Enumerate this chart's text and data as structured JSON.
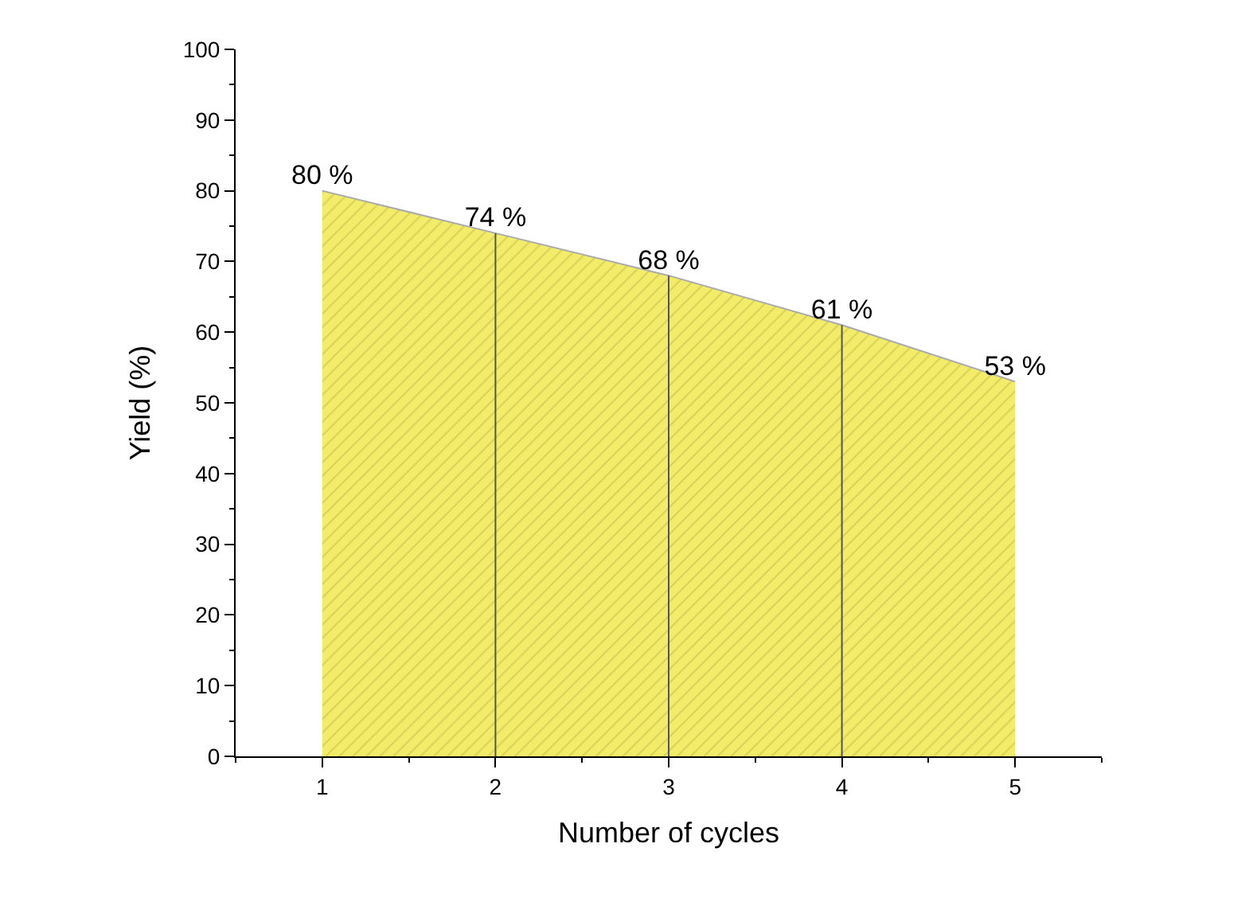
{
  "chart_data": {
    "type": "area",
    "xlabel": "Number of cycles",
    "ylabel": "Yield (%)",
    "x": [
      1,
      2,
      3,
      4,
      5
    ],
    "series": [
      {
        "color": "#f2ec6a",
        "values": [
          80,
          74,
          68,
          61,
          53
        ]
      }
    ],
    "value_labels": [
      "80 %",
      "74 %",
      "68 %",
      "61 %",
      "53 %"
    ],
    "xlim": [
      0.5,
      5.5
    ],
    "xticks": [
      1,
      2,
      3,
      4,
      5
    ],
    "ylim": [
      0,
      100
    ],
    "yticks": [
      0,
      10,
      20,
      30,
      40,
      50,
      60,
      70,
      80,
      90,
      100
    ],
    "ref_lines": [
      {
        "axis": "x",
        "value": 2,
        "color": "#555555"
      },
      {
        "axis": "x",
        "value": 3,
        "color": "#555555"
      },
      {
        "axis": "x",
        "value": 4,
        "color": "#555555"
      }
    ],
    "marker": "none",
    "line_style": "solid"
  }
}
